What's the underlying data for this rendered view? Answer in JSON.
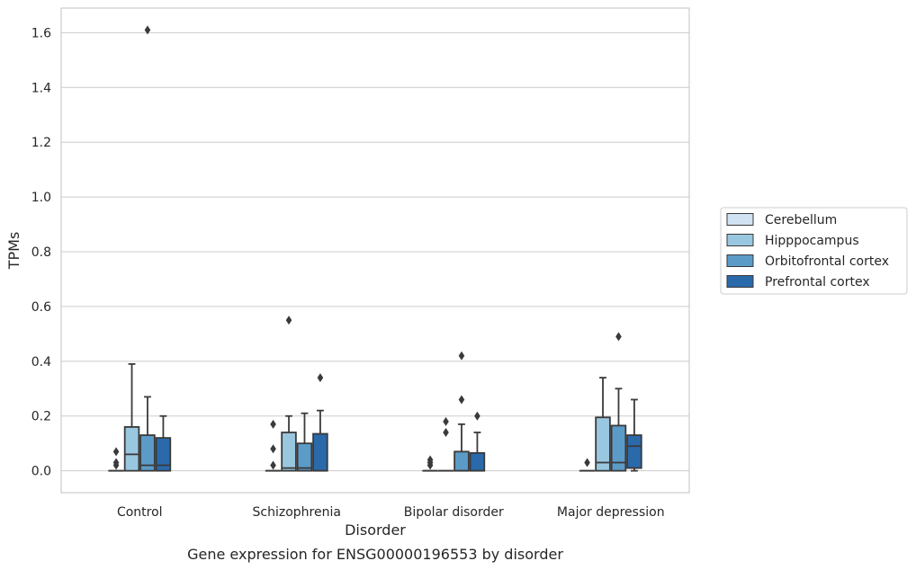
{
  "chart_data": {
    "type": "box",
    "title": "",
    "caption": "Gene expression for ENSG00000196553 by disorder",
    "xlabel": "Disorder",
    "ylabel": "TPMs",
    "ylim": [
      -0.08,
      1.69
    ],
    "yticks": [
      0.0,
      0.2,
      0.4,
      0.6,
      0.8,
      1.0,
      1.2,
      1.4,
      1.6
    ],
    "ytick_labels": [
      "0.0",
      "0.2",
      "0.4",
      "0.6",
      "0.8",
      "1.0",
      "1.2",
      "1.4",
      "1.6"
    ],
    "grid": "horizontal",
    "legend_position": "right",
    "categories": [
      "Control",
      "Schizophrenia",
      "Bipolar disorder",
      "Major depression"
    ],
    "series": [
      {
        "name": "Cerebellum",
        "color": "#d1e2f2",
        "boxes": [
          {
            "whislo": 0.0,
            "q1": 0.0,
            "med": 0.0,
            "q3": 0.0,
            "whishi": 0.0,
            "fliers": [
              0.02,
              0.03,
              0.07
            ]
          },
          {
            "whislo": 0.0,
            "q1": 0.0,
            "med": 0.0,
            "q3": 0.0,
            "whishi": 0.0,
            "fliers": [
              0.02,
              0.08,
              0.17
            ]
          },
          {
            "whislo": 0.0,
            "q1": 0.0,
            "med": 0.0,
            "q3": 0.0,
            "whishi": 0.0,
            "fliers": [
              0.02,
              0.03,
              0.04
            ]
          },
          {
            "whislo": 0.0,
            "q1": 0.0,
            "med": 0.0,
            "q3": 0.0,
            "whishi": 0.0,
            "fliers": [
              0.03
            ]
          }
        ]
      },
      {
        "name": "Hipppocampus",
        "color": "#9ac7e0",
        "boxes": [
          {
            "whislo": 0.0,
            "q1": 0.0,
            "med": 0.06,
            "q3": 0.16,
            "whishi": 0.39,
            "fliers": []
          },
          {
            "whislo": 0.0,
            "q1": 0.0,
            "med": 0.01,
            "q3": 0.14,
            "whishi": 0.2,
            "fliers": [
              0.55
            ]
          },
          {
            "whislo": 0.0,
            "q1": 0.0,
            "med": 0.0,
            "q3": 0.0,
            "whishi": 0.0,
            "fliers": [
              0.14,
              0.18
            ]
          },
          {
            "whislo": 0.0,
            "q1": 0.0,
            "med": 0.03,
            "q3": 0.195,
            "whishi": 0.34,
            "fliers": []
          }
        ]
      },
      {
        "name": "Orbitofrontal cortex",
        "color": "#5b9bc8",
        "boxes": [
          {
            "whislo": 0.0,
            "q1": 0.0,
            "med": 0.02,
            "q3": 0.13,
            "whishi": 0.27,
            "fliers": [
              1.61
            ]
          },
          {
            "whislo": 0.0,
            "q1": 0.0,
            "med": 0.01,
            "q3": 0.1,
            "whishi": 0.21,
            "fliers": []
          },
          {
            "whislo": 0.0,
            "q1": 0.0,
            "med": 0.0,
            "q3": 0.07,
            "whishi": 0.17,
            "fliers": [
              0.26,
              0.42
            ]
          },
          {
            "whislo": 0.0,
            "q1": 0.0,
            "med": 0.03,
            "q3": 0.165,
            "whishi": 0.3,
            "fliers": [
              0.49
            ]
          }
        ]
      },
      {
        "name": "Prefrontal cortex",
        "color": "#2a6aab",
        "boxes": [
          {
            "whislo": 0.0,
            "q1": 0.0,
            "med": 0.02,
            "q3": 0.12,
            "whishi": 0.2,
            "fliers": []
          },
          {
            "whislo": 0.0,
            "q1": 0.0,
            "med": 0.0,
            "q3": 0.135,
            "whishi": 0.22,
            "fliers": [
              0.34
            ]
          },
          {
            "whislo": 0.0,
            "q1": 0.0,
            "med": 0.0,
            "q3": 0.065,
            "whishi": 0.14,
            "fliers": [
              0.2
            ]
          },
          {
            "whislo": 0.0,
            "q1": 0.01,
            "med": 0.09,
            "q3": 0.13,
            "whishi": 0.26,
            "fliers": []
          }
        ]
      }
    ]
  }
}
